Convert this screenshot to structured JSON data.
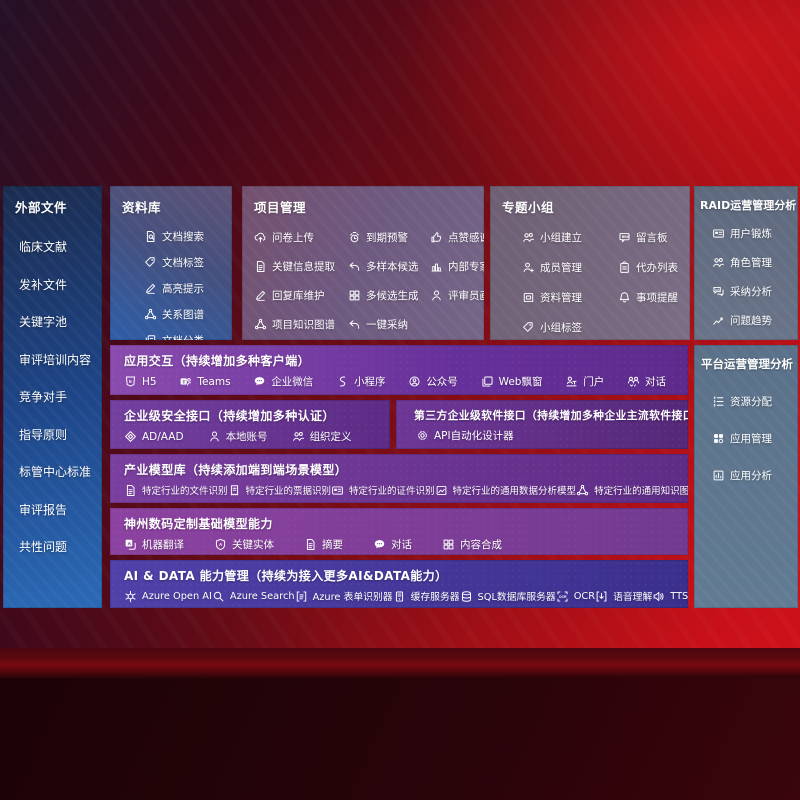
{
  "colors": {
    "accent_red": "#c0101a",
    "panel_purple": "#6b339a",
    "panel_indigo": "#4f41a8",
    "panel_blue": "#2b6ab6",
    "panel_slate": "#5d7590"
  },
  "sidebar": {
    "title": "外部文件",
    "items": [
      "临床文献",
      "发补文件",
      "关键字池",
      "审评培训内容",
      "竞争对手",
      "指导原则",
      "标管中心标准",
      "审评报告",
      "共性问题"
    ]
  },
  "panels": {
    "datalib": {
      "title": "资料库",
      "items": [
        {
          "icon": "doc-search",
          "label": "文档搜索"
        },
        {
          "icon": "doc-tag",
          "label": "文档标签"
        },
        {
          "icon": "highlight-pen",
          "label": "高亮提示"
        },
        {
          "icon": "relation-graph",
          "label": "关系图谱"
        },
        {
          "icon": "doc-category",
          "label": "文档分类"
        }
      ]
    },
    "project": {
      "title": "项目管理",
      "items": [
        {
          "icon": "cloud-upload",
          "label": "问卷上传"
        },
        {
          "icon": "alarm",
          "label": "到期预警"
        },
        {
          "icon": "thumbs-up",
          "label": "点赞感谢"
        },
        {
          "icon": "doc-extract",
          "label": "关键信息提取"
        },
        {
          "icon": "reply-arrow",
          "label": "多样本候选"
        },
        {
          "icon": "podium",
          "label": "内部专家排名"
        },
        {
          "icon": "pen",
          "label": "回复库维护"
        },
        {
          "icon": "grid",
          "label": "多候选生成"
        },
        {
          "icon": "person",
          "label": "评审员画像"
        },
        {
          "icon": "knowledge-graph",
          "label": "项目知识图谱"
        },
        {
          "icon": "adopt-arrow",
          "label": "一键采纳"
        }
      ]
    },
    "group": {
      "title": "专题小组",
      "items": [
        {
          "icon": "people",
          "label": "小组建立"
        },
        {
          "icon": "bbs",
          "label": "留言板"
        },
        {
          "icon": "member-add",
          "label": "成员管理"
        },
        {
          "icon": "clipboard",
          "label": "代办列表"
        },
        {
          "icon": "archive",
          "label": "资料管理"
        },
        {
          "icon": "bell",
          "label": "事项提醒"
        },
        {
          "icon": "group-tag",
          "label": "小组标签"
        }
      ]
    },
    "raid": {
      "title": "RAID运营管理分析",
      "items": [
        {
          "icon": "id-card",
          "label": "用户锻炼"
        },
        {
          "icon": "people",
          "label": "角色管理"
        },
        {
          "icon": "chat-qa",
          "label": "采纳分析"
        },
        {
          "icon": "trend",
          "label": "问题趋势"
        }
      ]
    },
    "platform": {
      "title": "平台运营管理分析",
      "items": [
        {
          "icon": "list-lines",
          "label": "资源分配"
        },
        {
          "icon": "apps",
          "label": "应用管理"
        },
        {
          "icon": "chart-bars",
          "label": "应用分析"
        }
      ]
    }
  },
  "rows": {
    "interact": {
      "title": "应用交互（持续增加多种客户端）",
      "items": [
        {
          "icon": "h5",
          "label": "H5"
        },
        {
          "icon": "teams",
          "label": "Teams"
        },
        {
          "icon": "chat-bubble",
          "label": "企业微信"
        },
        {
          "icon": "s-curve",
          "label": "小程序"
        },
        {
          "icon": "person-circle",
          "label": "公众号"
        },
        {
          "icon": "windows",
          "label": "Web飘窗"
        },
        {
          "icon": "person-desk",
          "label": "门户"
        },
        {
          "icon": "people-chat",
          "label": "对话"
        }
      ]
    },
    "security": {
      "title": "企业级安全接口（持续增加多种认证）",
      "items": [
        {
          "icon": "diamond",
          "label": "AD/AAD"
        },
        {
          "icon": "person-local",
          "label": "本地账号"
        },
        {
          "icon": "org-people",
          "label": "组织定义"
        }
      ]
    },
    "thirdparty": {
      "title": "第三方企业级软件接口（持续增加多种企业主流软件接口）",
      "items": [
        {
          "icon": "api-gear",
          "label": "API自动化设计器"
        }
      ]
    },
    "models": {
      "title": "产业模型库（持续添加端到端场景模型）",
      "items": [
        {
          "icon": "doc-lines",
          "label": "特定行业的文件识别"
        },
        {
          "icon": "receipt",
          "label": "特定行业的票据识别"
        },
        {
          "icon": "certificate",
          "label": "特定行业的证件识别"
        },
        {
          "icon": "image-chart",
          "label": "特定行业的通用数据分析模型"
        },
        {
          "icon": "knowledge-graph",
          "label": "特定行业的通用知识图谱模型"
        }
      ]
    },
    "foundation": {
      "title": "神州数码定制基础模型能力",
      "items": [
        {
          "icon": "translate",
          "label": "机器翻译"
        },
        {
          "icon": "shield-a",
          "label": "关键实体"
        },
        {
          "icon": "summary-doc",
          "label": "摘要"
        },
        {
          "icon": "chat-dots",
          "label": "对话"
        },
        {
          "icon": "compose-grid",
          "label": "内容合成"
        }
      ]
    },
    "aidata": {
      "title": "AI & DATA 能力管理（持续为接入更多AI&DATA能力）",
      "items": [
        {
          "icon": "openai",
          "label": "Azure Open AI"
        },
        {
          "icon": "azure-search",
          "label": "Azure Search"
        },
        {
          "icon": "form-recognizer",
          "label": "Azure 表单识别器"
        },
        {
          "icon": "cache-server",
          "label": "缓存服务器"
        },
        {
          "icon": "sql-database",
          "label": "SQL数据库服务器"
        },
        {
          "icon": "ocr",
          "label": "OCR"
        },
        {
          "icon": "speech",
          "label": "语音理解"
        },
        {
          "icon": "tts",
          "label": "TTS"
        }
      ]
    }
  }
}
